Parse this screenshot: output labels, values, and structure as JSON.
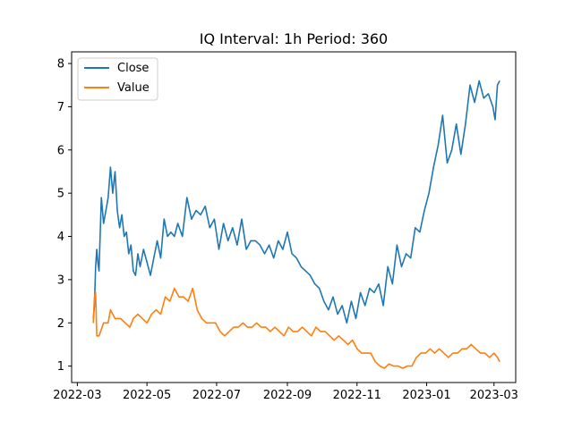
{
  "chart_data": {
    "type": "line",
    "title": "IQ Interval: 1h Period: 360",
    "xlabel": "",
    "ylabel": "",
    "x_ticks": [
      "2022-03",
      "2022-05",
      "2022-07",
      "2022-09",
      "2022-11",
      "2023-01",
      "2023-03"
    ],
    "y_ticks": [
      "1",
      "2",
      "3",
      "4",
      "5",
      "6",
      "7",
      "8"
    ],
    "xlim": [
      "2022-02-24",
      "2023-03-20"
    ],
    "ylim": [
      0.62,
      8.27
    ],
    "grid": false,
    "legend": "top-left",
    "series": [
      {
        "name": "Close",
        "color": "#1f77b4",
        "x": [
          "2022-03-15",
          "2022-03-16",
          "2022-03-17",
          "2022-03-18",
          "2022-03-19",
          "2022-03-20",
          "2022-03-22",
          "2022-03-24",
          "2022-03-26",
          "2022-03-28",
          "2022-03-30",
          "2022-04-01",
          "2022-04-03",
          "2022-04-05",
          "2022-04-07",
          "2022-04-09",
          "2022-04-11",
          "2022-04-13",
          "2022-04-15",
          "2022-04-17",
          "2022-04-19",
          "2022-04-21",
          "2022-04-23",
          "2022-04-25",
          "2022-04-28",
          "2022-05-01",
          "2022-05-04",
          "2022-05-07",
          "2022-05-10",
          "2022-05-13",
          "2022-05-16",
          "2022-05-19",
          "2022-05-22",
          "2022-05-25",
          "2022-05-28",
          "2022-06-01",
          "2022-06-05",
          "2022-06-09",
          "2022-06-13",
          "2022-06-17",
          "2022-06-21",
          "2022-06-25",
          "2022-06-29",
          "2022-07-03",
          "2022-07-07",
          "2022-07-11",
          "2022-07-15",
          "2022-07-19",
          "2022-07-23",
          "2022-07-27",
          "2022-07-31",
          "2022-08-04",
          "2022-08-08",
          "2022-08-12",
          "2022-08-16",
          "2022-08-20",
          "2022-08-24",
          "2022-08-28",
          "2022-09-01",
          "2022-09-05",
          "2022-09-09",
          "2022-09-13",
          "2022-09-17",
          "2022-09-21",
          "2022-09-25",
          "2022-09-29",
          "2022-10-03",
          "2022-10-07",
          "2022-10-11",
          "2022-10-15",
          "2022-10-19",
          "2022-10-23",
          "2022-10-27",
          "2022-10-31",
          "2022-11-04",
          "2022-11-08",
          "2022-11-12",
          "2022-11-16",
          "2022-11-20",
          "2022-11-24",
          "2022-11-28",
          "2022-12-02",
          "2022-12-06",
          "2022-12-10",
          "2022-12-14",
          "2022-12-18",
          "2022-12-22",
          "2022-12-26",
          "2022-12-30",
          "2023-01-03",
          "2023-01-07",
          "2023-01-11",
          "2023-01-15",
          "2023-01-19",
          "2023-01-23",
          "2023-01-27",
          "2023-01-31",
          "2023-02-04",
          "2023-02-08",
          "2023-02-12",
          "2023-02-16",
          "2023-02-20",
          "2023-02-24",
          "2023-02-28",
          "2023-03-02",
          "2023-03-04",
          "2023-03-06"
        ],
        "values": [
          2.1,
          2.4,
          3.3,
          3.7,
          3.4,
          3.2,
          4.9,
          4.3,
          4.6,
          4.9,
          5.6,
          5.0,
          5.5,
          4.6,
          4.2,
          4.5,
          4.0,
          4.1,
          3.6,
          3.8,
          3.2,
          3.1,
          3.6,
          3.3,
          3.7,
          3.4,
          3.1,
          3.5,
          3.9,
          3.5,
          4.4,
          4.0,
          4.1,
          4.0,
          4.3,
          4.0,
          4.9,
          4.4,
          4.6,
          4.5,
          4.7,
          4.2,
          4.4,
          3.7,
          4.3,
          3.9,
          4.2,
          3.8,
          4.4,
          3.7,
          3.9,
          3.9,
          3.8,
          3.6,
          3.8,
          3.5,
          3.9,
          3.7,
          4.1,
          3.6,
          3.5,
          3.3,
          3.2,
          3.1,
          2.9,
          2.8,
          2.5,
          2.3,
          2.6,
          2.2,
          2.4,
          2.0,
          2.5,
          2.1,
          2.7,
          2.4,
          2.8,
          2.7,
          2.9,
          2.4,
          3.3,
          2.9,
          3.8,
          3.3,
          3.6,
          3.5,
          4.2,
          4.1,
          4.6,
          5.0,
          5.6,
          6.1,
          6.8,
          5.7,
          6.0,
          6.6,
          5.9,
          6.6,
          7.5,
          7.1,
          7.6,
          7.2,
          7.3,
          7.0,
          6.7,
          7.5,
          7.6
        ]
      },
      {
        "name": "Value",
        "color": "#ff7f0e",
        "x": [
          "2022-03-15",
          "2022-03-16",
          "2022-03-17",
          "2022-03-18",
          "2022-03-20",
          "2022-03-24",
          "2022-03-28",
          "2022-03-30",
          "2022-04-03",
          "2022-04-08",
          "2022-04-12",
          "2022-04-16",
          "2022-04-19",
          "2022-04-23",
          "2022-04-27",
          "2022-05-01",
          "2022-05-05",
          "2022-05-09",
          "2022-05-13",
          "2022-05-17",
          "2022-05-21",
          "2022-05-25",
          "2022-05-29",
          "2022-06-02",
          "2022-06-06",
          "2022-06-10",
          "2022-06-14",
          "2022-06-18",
          "2022-06-22",
          "2022-06-26",
          "2022-06-30",
          "2022-07-04",
          "2022-07-08",
          "2022-07-12",
          "2022-07-16",
          "2022-07-20",
          "2022-07-24",
          "2022-07-28",
          "2022-08-01",
          "2022-08-05",
          "2022-08-09",
          "2022-08-13",
          "2022-08-17",
          "2022-08-21",
          "2022-08-25",
          "2022-08-29",
          "2022-09-02",
          "2022-09-06",
          "2022-09-10",
          "2022-09-14",
          "2022-09-18",
          "2022-09-22",
          "2022-09-26",
          "2022-09-30",
          "2022-10-04",
          "2022-10-08",
          "2022-10-12",
          "2022-10-16",
          "2022-10-20",
          "2022-10-24",
          "2022-10-28",
          "2022-11-01",
          "2022-11-05",
          "2022-11-09",
          "2022-11-13",
          "2022-11-17",
          "2022-11-21",
          "2022-11-25",
          "2022-11-29",
          "2022-12-03",
          "2022-12-07",
          "2022-12-11",
          "2022-12-15",
          "2022-12-19",
          "2022-12-23",
          "2022-12-27",
          "2022-12-31",
          "2023-01-04",
          "2023-01-08",
          "2023-01-12",
          "2023-01-16",
          "2023-01-20",
          "2023-01-24",
          "2023-01-28",
          "2023-02-01",
          "2023-02-05",
          "2023-02-09",
          "2023-02-13",
          "2023-02-17",
          "2023-02-21",
          "2023-02-25",
          "2023-03-01",
          "2023-03-04",
          "2023-03-06"
        ],
        "values": [
          2.0,
          2.6,
          2.7,
          1.7,
          1.7,
          2.0,
          2.0,
          2.3,
          2.1,
          2.1,
          2.0,
          1.9,
          2.1,
          2.2,
          2.1,
          2.0,
          2.2,
          2.3,
          2.2,
          2.6,
          2.5,
          2.8,
          2.6,
          2.6,
          2.5,
          2.8,
          2.3,
          2.1,
          2.0,
          2.0,
          2.0,
          1.8,
          1.7,
          1.8,
          1.9,
          1.9,
          2.0,
          1.9,
          1.9,
          2.0,
          1.9,
          1.9,
          1.8,
          1.9,
          1.8,
          1.7,
          1.9,
          1.8,
          1.8,
          1.9,
          1.8,
          1.7,
          1.9,
          1.8,
          1.8,
          1.7,
          1.6,
          1.7,
          1.6,
          1.5,
          1.6,
          1.4,
          1.3,
          1.3,
          1.3,
          1.1,
          1.0,
          0.95,
          1.05,
          1.0,
          1.0,
          0.95,
          1.0,
          1.0,
          1.2,
          1.3,
          1.3,
          1.4,
          1.3,
          1.4,
          1.3,
          1.2,
          1.3,
          1.3,
          1.4,
          1.4,
          1.5,
          1.4,
          1.3,
          1.3,
          1.2,
          1.3,
          1.2,
          1.1
        ]
      }
    ]
  }
}
